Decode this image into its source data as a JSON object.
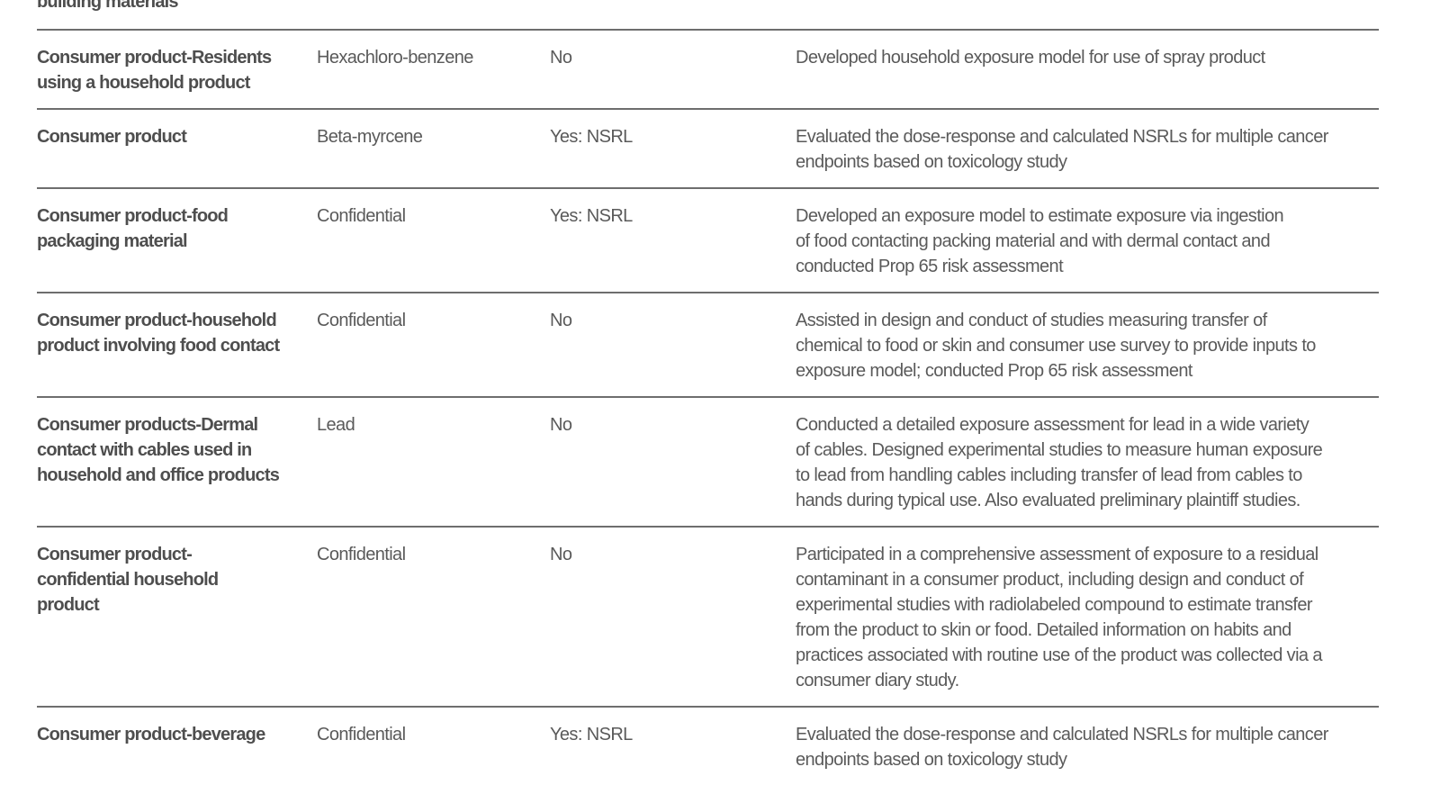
{
  "rows": [
    {
      "source": "building materials",
      "chemical": "",
      "prop65": "",
      "description": ""
    },
    {
      "source": "Consumer product-Residents\nusing a household product",
      "chemical": "Hexachloro-benzene",
      "prop65": "No",
      "description": "Developed household exposure model for use of spray product"
    },
    {
      "source": "Consumer product",
      "chemical": "Beta-myrcene",
      "prop65": "Yes: NSRL",
      "description": "Evaluated the dose-response and calculated NSRLs for multiple cancer\nendpoints based on toxicology study"
    },
    {
      "source": "Consumer product-food\npackaging material",
      "chemical": "Confidential",
      "prop65": "Yes: NSRL",
      "description": "Developed an exposure model to estimate exposure via ingestion\nof food contacting packing material and with dermal contact and\nconducted Prop 65 risk assessment"
    },
    {
      "source": "Consumer product-household\nproduct involving food contact",
      "chemical": "Confidential",
      "prop65": "No",
      "description": "Assisted in design and conduct of studies measuring transfer of\nchemical to food or skin and consumer use survey to provide inputs to\nexposure model; conducted Prop 65 risk assessment"
    },
    {
      "source": "Consumer products-Dermal\ncontact with cables used in\nhousehold and office products",
      "chemical": "Lead",
      "prop65": "No",
      "description": "Conducted a detailed exposure assessment for lead in a wide variety\nof cables. Designed experimental studies to measure human exposure\nto lead from handling cables including transfer of lead from cables to\nhands during typical use.  Also evaluated preliminary plaintiff studies."
    },
    {
      "source": "Consumer product-\nconfidential household\nproduct",
      "chemical": "Confidential",
      "prop65": "No",
      "description": "Participated in a comprehensive assessment of exposure to a residual\ncontaminant in a consumer product, including design and conduct of\nexperimental studies with radiolabeled compound to estimate transfer\nfrom the product to skin or food.  Detailed information on habits and\npractices associated with routine use of the product was collected via a\nconsumer diary study."
    },
    {
      "source": "Consumer product-beverage",
      "chemical": "Confidential",
      "prop65": "Yes: NSRL",
      "description": "Evaluated the dose-response and calculated NSRLs for multiple cancer\nendpoints based on toxicology study"
    }
  ]
}
